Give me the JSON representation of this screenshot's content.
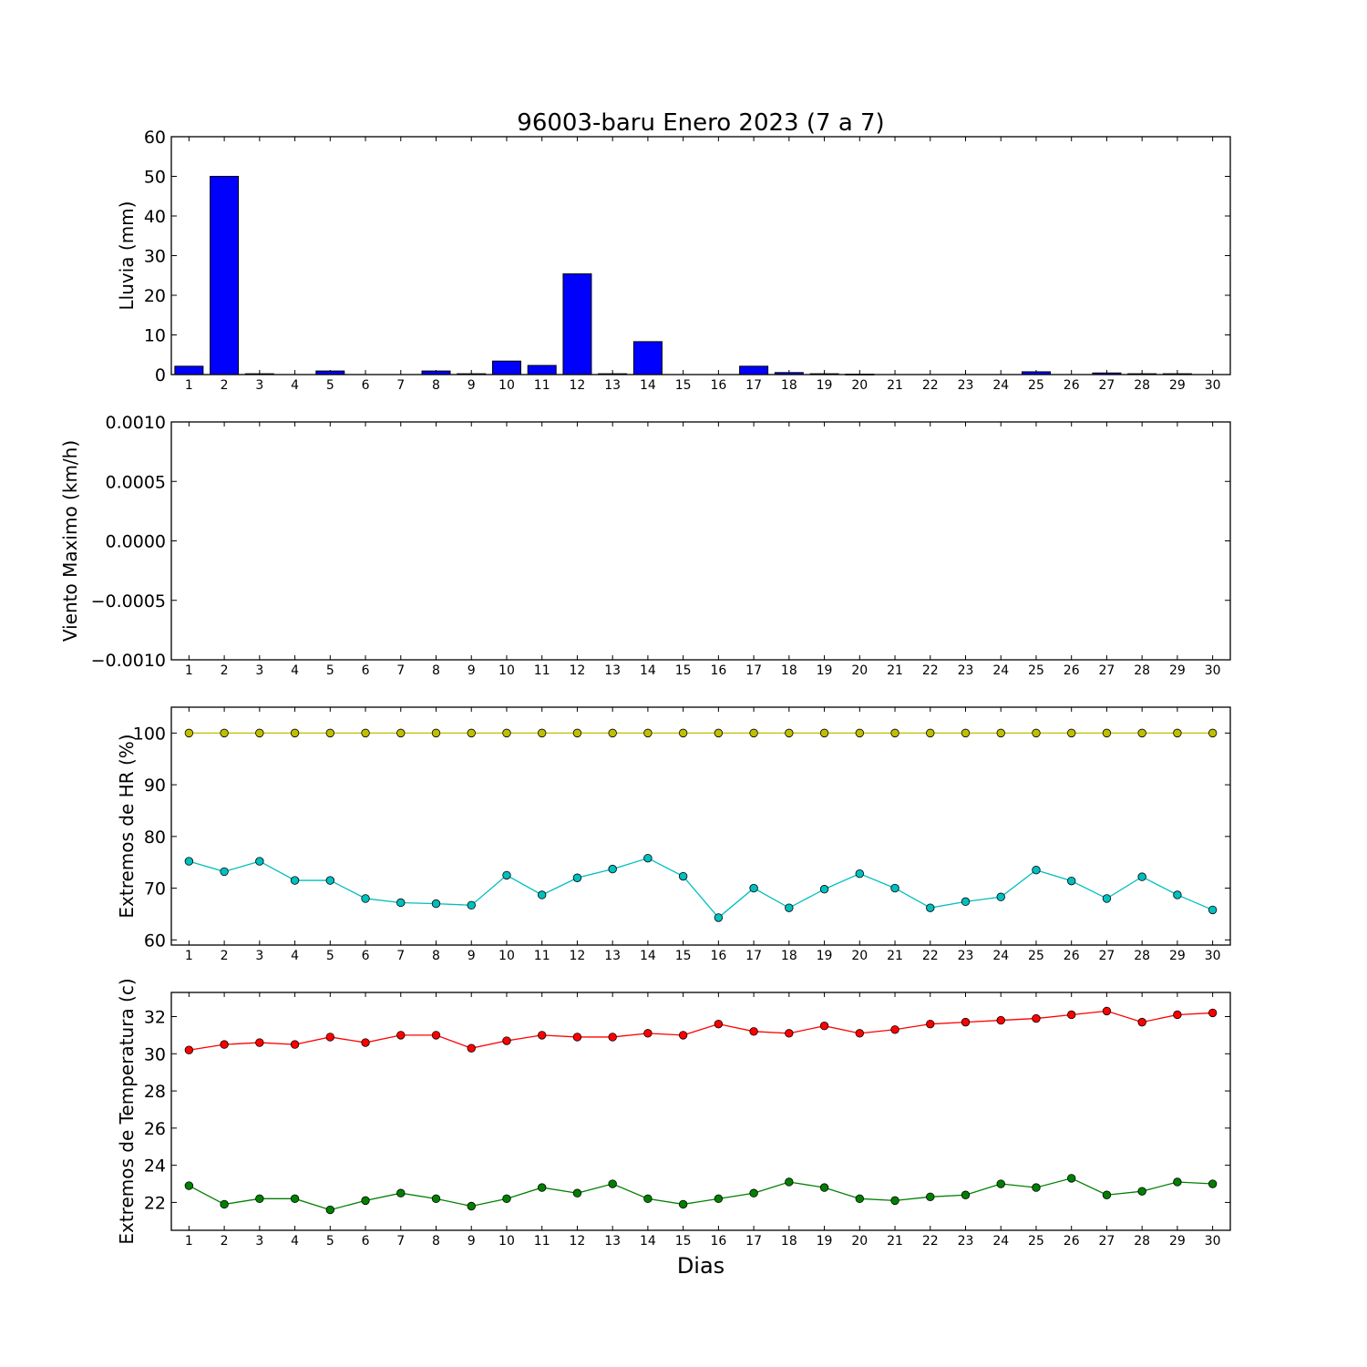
{
  "chart_data": {
    "title": "96003-baru Enero 2023  (7 a 7)",
    "xlabel": "Dias",
    "x": [
      1,
      2,
      3,
      4,
      5,
      6,
      7,
      8,
      9,
      10,
      11,
      12,
      13,
      14,
      15,
      16,
      17,
      18,
      19,
      20,
      21,
      22,
      23,
      24,
      25,
      26,
      27,
      28,
      29,
      30
    ],
    "xlim": [
      0.5,
      30.5
    ],
    "panels": [
      {
        "type": "bar",
        "ylabel": "Lluvia (mm)",
        "ylim": [
          0,
          60
        ],
        "yticks": [
          0,
          10,
          20,
          30,
          40,
          50,
          60
        ],
        "ytick_labels": [
          "0",
          "10",
          "20",
          "30",
          "40",
          "50",
          "60"
        ],
        "series": [
          {
            "color": "#0000ff",
            "values": [
              2.1,
              50.0,
              0.2,
              0.0,
              0.9,
              0.0,
              0.0,
              0.9,
              0.2,
              3.4,
              2.3,
              25.4,
              0.2,
              8.3,
              0.0,
              0.0,
              2.1,
              0.5,
              0.2,
              0.1,
              0.0,
              0.0,
              0.0,
              0.0,
              0.7,
              0.0,
              0.4,
              0.2,
              0.2,
              0.0
            ]
          }
        ]
      },
      {
        "type": "line",
        "ylabel": "Viento Maximo (km/h)",
        "ylim": [
          -0.001,
          0.001
        ],
        "yticks": [
          -0.001,
          -0.0005,
          0.0,
          0.0005,
          0.001
        ],
        "ytick_labels": [
          "−0.0010",
          "−0.0005",
          "0.0000",
          "0.0005",
          "0.0010"
        ],
        "series": []
      },
      {
        "type": "line",
        "ylabel": "Extremos de HR (%)",
        "ylim": [
          59,
          105
        ],
        "yticks": [
          60,
          70,
          80,
          90,
          100
        ],
        "ytick_labels": [
          "60",
          "70",
          "80",
          "90",
          "100"
        ],
        "series": [
          {
            "color": "#bfbf00",
            "values": [
              100,
              100,
              100,
              100,
              100,
              100,
              100,
              100,
              100,
              100,
              100,
              100,
              100,
              100,
              100,
              100,
              100,
              100,
              100,
              100,
              100,
              100,
              100,
              100,
              100,
              100,
              100,
              100,
              100,
              100
            ]
          },
          {
            "color": "#00bfbf",
            "values": [
              75.2,
              73.2,
              75.2,
              71.5,
              71.5,
              68.0,
              67.2,
              67.0,
              66.7,
              72.5,
              68.7,
              72.0,
              73.7,
              75.8,
              72.3,
              64.3,
              70.0,
              66.2,
              69.8,
              72.8,
              70.0,
              66.2,
              67.4,
              68.3,
              73.5,
              71.4,
              68.0,
              72.2,
              68.7,
              65.8
            ]
          }
        ]
      },
      {
        "type": "line",
        "ylabel": "Extremos de Temperatura (c)",
        "ylim": [
          20.5,
          33.3
        ],
        "yticks": [
          22,
          24,
          26,
          28,
          30,
          32
        ],
        "ytick_labels": [
          "22",
          "24",
          "26",
          "28",
          "30",
          "32"
        ],
        "series": [
          {
            "color": "#ff0000",
            "values": [
              30.2,
              30.5,
              30.6,
              30.5,
              30.9,
              30.6,
              31.0,
              31.0,
              30.3,
              30.7,
              31.0,
              30.9,
              30.9,
              31.1,
              31.0,
              31.6,
              31.2,
              31.1,
              31.5,
              31.1,
              31.3,
              31.6,
              31.7,
              31.8,
              31.9,
              32.1,
              32.3,
              31.7,
              32.1,
              32.2
            ]
          },
          {
            "color": "#008000",
            "values": [
              22.9,
              21.9,
              22.2,
              22.2,
              21.6,
              22.1,
              22.5,
              22.2,
              21.8,
              22.2,
              22.8,
              22.5,
              23.0,
              22.2,
              21.9,
              22.2,
              22.5,
              23.1,
              22.8,
              22.2,
              22.1,
              22.3,
              22.4,
              23.0,
              22.8,
              23.3,
              22.4,
              22.6,
              23.1,
              23.0
            ]
          }
        ]
      }
    ]
  }
}
